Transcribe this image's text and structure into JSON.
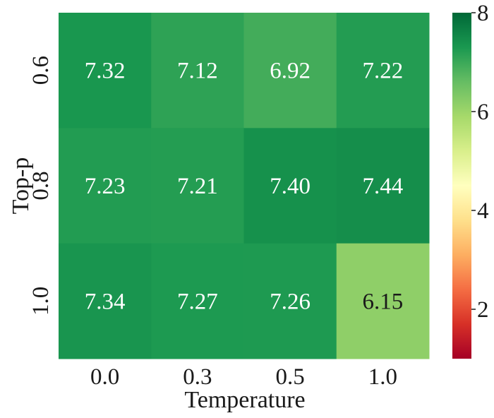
{
  "chart_data": {
    "type": "heatmap",
    "x": [
      "0.0",
      "0.3",
      "0.5",
      "1.0"
    ],
    "y": [
      "0.6",
      "0.8",
      "1.0"
    ],
    "values": [
      [
        7.32,
        7.12,
        6.92,
        7.22
      ],
      [
        7.23,
        7.21,
        7.4,
        7.44
      ],
      [
        7.34,
        7.27,
        7.26,
        6.15
      ]
    ],
    "value_labels": [
      [
        "7.32",
        "7.12",
        "6.92",
        "7.22"
      ],
      [
        "7.23",
        "7.21",
        "7.40",
        "7.44"
      ],
      [
        "7.34",
        "7.27",
        "7.26",
        "6.15"
      ]
    ],
    "xlabel": "Temperature",
    "ylabel": "Top-p",
    "colorbar": {
      "range": [
        1,
        8
      ],
      "ticks": [
        2,
        4,
        6,
        8
      ],
      "tick_labels": [
        "2",
        "4",
        "6",
        "8"
      ],
      "colormap": "RdYlGn"
    }
  }
}
